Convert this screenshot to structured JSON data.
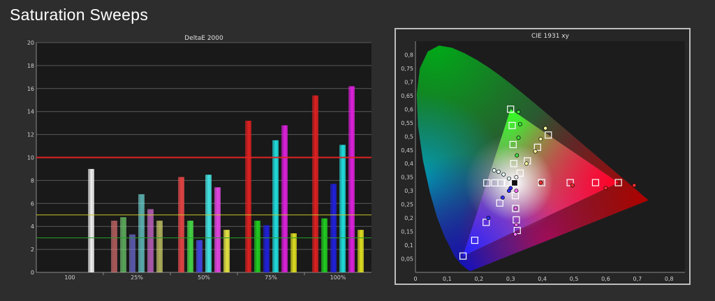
{
  "page_title": "Saturation Sweeps",
  "chart_data": [
    {
      "type": "bar",
      "title": "DeltaE 2000",
      "ylim": [
        0,
        20
      ],
      "yticks": [
        0,
        2,
        4,
        6,
        8,
        10,
        12,
        14,
        16,
        18,
        20
      ],
      "grid": true,
      "categories": [
        "100",
        "25%",
        "50%",
        "75%",
        "100%"
      ],
      "colors": {
        "white": "#f2f2f2",
        "red": "#e02020",
        "green": "#20d020",
        "blue": "#2020e0",
        "cyan": "#20e0e0",
        "magenta": "#e020e0",
        "yellow": "#e0e020"
      },
      "series": [
        {
          "color": "white",
          "values": [
            9.0,
            null,
            null,
            null,
            null
          ]
        },
        {
          "color": "red",
          "values": [
            null,
            4.5,
            8.3,
            13.2,
            15.4
          ]
        },
        {
          "color": "green",
          "values": [
            null,
            4.8,
            4.5,
            4.5,
            4.7
          ]
        },
        {
          "color": "blue",
          "values": [
            null,
            3.3,
            2.8,
            4.1,
            7.7
          ]
        },
        {
          "color": "cyan",
          "values": [
            null,
            6.8,
            8.5,
            11.5,
            11.1
          ]
        },
        {
          "color": "magenta",
          "values": [
            null,
            5.5,
            7.4,
            12.8,
            16.2
          ]
        },
        {
          "color": "yellow",
          "values": [
            null,
            4.5,
            3.7,
            3.4,
            3.7
          ]
        }
      ],
      "reference_lines": [
        {
          "value": 10,
          "color": "#e02424"
        },
        {
          "value": 5,
          "color": "#c8c828"
        },
        {
          "value": 3,
          "color": "#28a028"
        }
      ]
    },
    {
      "type": "scatter",
      "title": "CIE 1931 xy",
      "xlim": [
        0,
        0.85
      ],
      "ylim": [
        0,
        0.85
      ],
      "xticks": [
        "0",
        "0,1",
        "0,2",
        "0,3",
        "0,4",
        "0,5",
        "0,6",
        "0,7",
        "0,8"
      ],
      "yticks": [
        "0,05",
        "0,1",
        "0,15",
        "0,2",
        "0,25",
        "0,3",
        "0,35",
        "0,4",
        "0,45",
        "0,5",
        "0,55",
        "0,6",
        "0,65",
        "0,7",
        "0,75",
        "0,8"
      ],
      "gamut_triangle": [
        [
          0.64,
          0.33
        ],
        [
          0.3,
          0.6
        ],
        [
          0.15,
          0.06
        ]
      ],
      "white_point": [
        0.3127,
        0.329
      ],
      "targets": [
        [
          0.3127,
          0.329
        ],
        [
          0.64,
          0.33
        ],
        [
          0.568,
          0.33
        ],
        [
          0.488,
          0.33
        ],
        [
          0.398,
          0.33
        ],
        [
          0.3,
          0.6
        ],
        [
          0.305,
          0.54
        ],
        [
          0.308,
          0.47
        ],
        [
          0.31,
          0.4
        ],
        [
          0.15,
          0.06
        ],
        [
          0.187,
          0.118
        ],
        [
          0.223,
          0.184
        ],
        [
          0.266,
          0.255
        ],
        [
          0.225,
          0.329
        ],
        [
          0.25,
          0.329
        ],
        [
          0.27,
          0.329
        ],
        [
          0.292,
          0.329
        ],
        [
          0.321,
          0.154
        ],
        [
          0.318,
          0.193
        ],
        [
          0.316,
          0.235
        ],
        [
          0.315,
          0.282
        ],
        [
          0.419,
          0.505
        ],
        [
          0.385,
          0.46
        ],
        [
          0.353,
          0.41
        ],
        [
          0.33,
          0.365
        ]
      ],
      "measured": [
        {
          "x": 0.69,
          "y": 0.32,
          "color": "red"
        },
        {
          "x": 0.6,
          "y": 0.31,
          "color": "red"
        },
        {
          "x": 0.495,
          "y": 0.32,
          "color": "red"
        },
        {
          "x": 0.395,
          "y": 0.33,
          "color": "red"
        },
        {
          "x": 0.325,
          "y": 0.59,
          "color": "green"
        },
        {
          "x": 0.33,
          "y": 0.545,
          "color": "green"
        },
        {
          "x": 0.325,
          "y": 0.495,
          "color": "green"
        },
        {
          "x": 0.32,
          "y": 0.43,
          "color": "green"
        },
        {
          "x": 0.23,
          "y": 0.2,
          "color": "blue"
        },
        {
          "x": 0.275,
          "y": 0.275,
          "color": "blue"
        },
        {
          "x": 0.295,
          "y": 0.3,
          "color": "blue"
        },
        {
          "x": 0.3,
          "y": 0.31,
          "color": "blue"
        },
        {
          "x": 0.248,
          "y": 0.375,
          "color": "cyan"
        },
        {
          "x": 0.262,
          "y": 0.37,
          "color": "cyan"
        },
        {
          "x": 0.278,
          "y": 0.36,
          "color": "cyan"
        },
        {
          "x": 0.295,
          "y": 0.345,
          "color": "cyan"
        },
        {
          "x": 0.315,
          "y": 0.14,
          "color": "magenta"
        },
        {
          "x": 0.318,
          "y": 0.175,
          "color": "magenta"
        },
        {
          "x": 0.316,
          "y": 0.235,
          "color": "magenta"
        },
        {
          "x": 0.318,
          "y": 0.3,
          "color": "magenta"
        },
        {
          "x": 0.41,
          "y": 0.53,
          "color": "yellow"
        },
        {
          "x": 0.395,
          "y": 0.49,
          "color": "yellow"
        },
        {
          "x": 0.378,
          "y": 0.445,
          "color": "yellow"
        },
        {
          "x": 0.35,
          "y": 0.4,
          "color": "yellow"
        },
        {
          "x": 0.318,
          "y": 0.35,
          "color": "white"
        }
      ]
    }
  ]
}
